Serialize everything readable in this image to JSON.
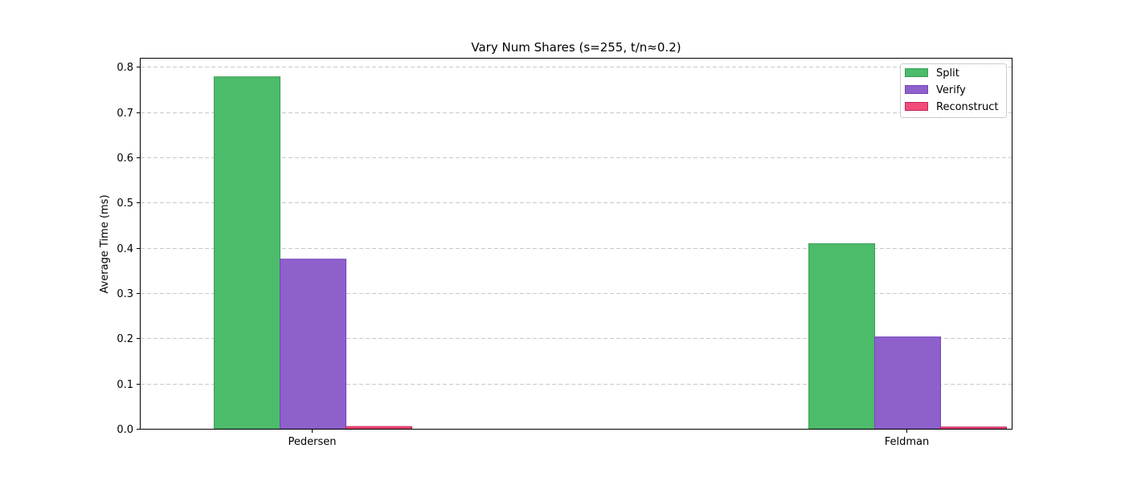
{
  "chart_data": {
    "type": "bar",
    "title": "Vary Num Shares (s=255, t/n≈0.2)",
    "xlabel": "",
    "ylabel": "Average Time (ms)",
    "categories": [
      "Pedersen",
      "Feldman"
    ],
    "series": [
      {
        "name": "Split",
        "values": [
          0.778,
          0.409
        ],
        "color": "#4cbb6a",
        "edge": "#3aa055"
      },
      {
        "name": "Verify",
        "values": [
          0.375,
          0.203
        ],
        "color": "#8e60cc",
        "edge": "#7446b8"
      },
      {
        "name": "Reconstruct",
        "values": [
          0.005,
          0.004
        ],
        "color": "#f24c7a",
        "edge": "#c2265a"
      }
    ],
    "ylim": [
      0,
      0.82
    ],
    "yticks": [
      "0.0",
      "0.1",
      "0.2",
      "0.3",
      "0.4",
      "0.5",
      "0.6",
      "0.7",
      "0.8"
    ],
    "ytick_values": [
      0,
      0.1,
      0.2,
      0.3,
      0.4,
      0.5,
      0.6,
      0.7,
      0.8
    ],
    "grid": "y-dashed",
    "legend_position": "top-right"
  }
}
